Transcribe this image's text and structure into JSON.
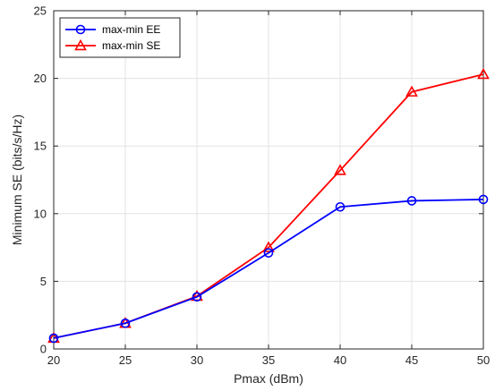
{
  "chart_data": {
    "type": "line",
    "title": "",
    "xlabel": "Pmax (dBm)",
    "ylabel": "Minimum SE (bits/s/Hz)",
    "x": [
      20,
      25,
      30,
      35,
      40,
      45,
      50
    ],
    "xlim": [
      20,
      50
    ],
    "ylim": [
      0,
      25
    ],
    "xticks": [
      "20",
      "25",
      "30",
      "35",
      "40",
      "45",
      "50"
    ],
    "yticks": [
      "0",
      "5",
      "10",
      "15",
      "20",
      "25"
    ],
    "grid": true,
    "legend_position": "top-left",
    "series": [
      {
        "name": "max-min EE",
        "color": "#0000ff",
        "marker": "circle",
        "values": [
          0.8,
          1.9,
          3.85,
          7.1,
          10.5,
          10.95,
          11.05
        ]
      },
      {
        "name": "max-min SE",
        "color": "#ff0000",
        "marker": "triangle",
        "values": [
          0.8,
          1.9,
          3.9,
          7.5,
          13.2,
          19.0,
          20.3
        ]
      }
    ]
  }
}
